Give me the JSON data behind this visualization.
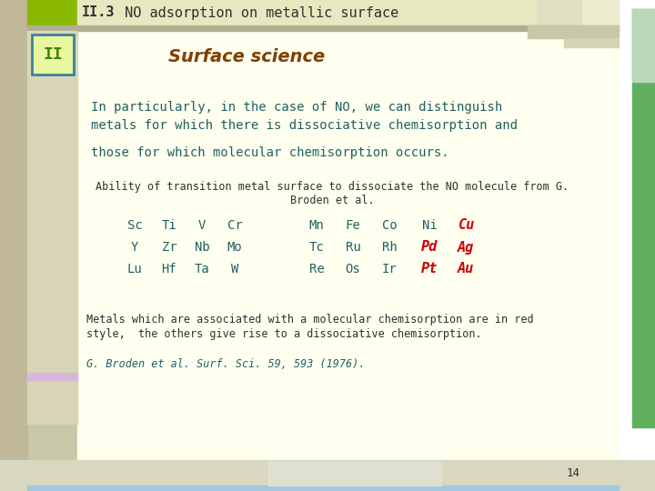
{
  "title_bold": "II.3",
  "title_rest": " NO adsorption on metallic surface",
  "section_label": "II",
  "surface_science_text": "Surface science",
  "para1_line1": "In particularly, in the case of NO, we can distinguish",
  "para1_line2": "metals for which there is dissociative chemisorption and",
  "para2": "those for which molecular chemisorption occurs.",
  "table_caption1": "Ability of transition metal surface to dissociate the NO molecule from G.",
  "table_caption2": "Broden et al.",
  "elements_row1": [
    "Sc",
    "Ti",
    "V",
    "Cr",
    "",
    "Mn",
    "Fe",
    "Co",
    "Ni",
    "Cu"
  ],
  "elements_row2": [
    "Y",
    "Zr",
    "Nb",
    "Mo",
    "",
    "Tc",
    "Ru",
    "Rh",
    "Pd",
    "Ag"
  ],
  "elements_row3": [
    "Lu",
    "Hf",
    "Ta",
    "W",
    "",
    "Re",
    "Os",
    "Ir",
    "Pt",
    "Au"
  ],
  "red_elements": [
    "Cu",
    "Pd",
    "Ag",
    "Pt",
    "Au"
  ],
  "footer_line1": "Metals which are associated with a molecular chemisorption are in red",
  "footer_line2": "style,  the others give rise to a dissociative chemisorption.",
  "reference": "G. Broden et al. Surf. Sci. 59, 593 (1976).",
  "page_num": "14",
  "col_bg": "#c8c8a8",
  "top_green": "#8ab800",
  "title_bar_bg": "#e8e8c0",
  "section_box_bg": "#e8f8a0",
  "section_box_border": "#4080a0",
  "section_label_color": "#408000",
  "right_col_green": "#60b060",
  "right_col_light": "#b8d8b8",
  "main_bg": "#fffff0",
  "bottom_bar_bg": "#d8d8c0",
  "page_box_bg": "#e0e0d0",
  "teal_color": "#206060",
  "dark_text": "#303030",
  "red_color": "#cc0000",
  "pink_bar": "#d8b8d8",
  "title_font_color": "#303030"
}
